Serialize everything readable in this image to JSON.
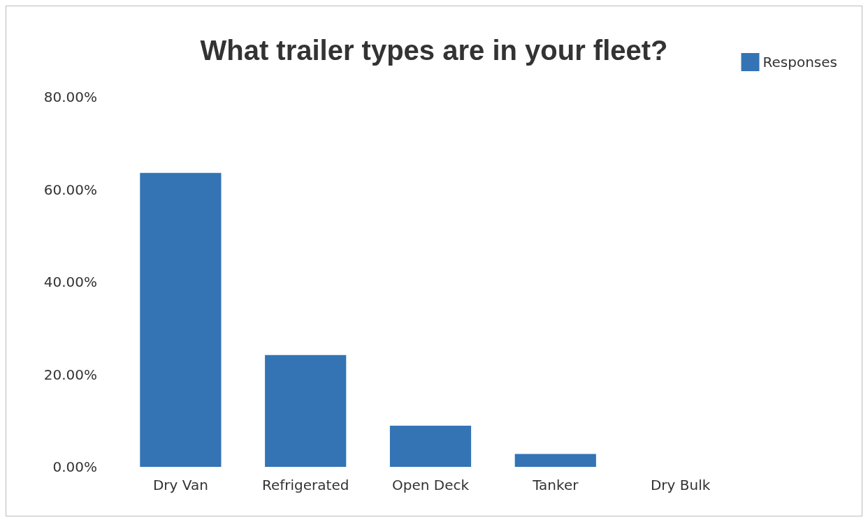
{
  "chart_data": {
    "type": "bar",
    "title": "What trailer types are in your fleet?",
    "categories": [
      "Dry Van",
      "Refrigerated",
      "Open Deck",
      "Tanker",
      "Dry Bulk"
    ],
    "series": [
      {
        "name": "Responses",
        "color": "#3474b5",
        "values": [
          63.6,
          24.2,
          8.9,
          2.8,
          0
        ]
      }
    ],
    "ylim": [
      0,
      80
    ],
    "yticks": [
      {
        "value": 0,
        "label": "0.00%"
      },
      {
        "value": 20,
        "label": "20.00%"
      },
      {
        "value": 40,
        "label": "40.00%"
      },
      {
        "value": 60,
        "label": "60.00%"
      },
      {
        "value": 80,
        "label": "80.00%"
      }
    ],
    "grid": false,
    "legend": "top right"
  }
}
